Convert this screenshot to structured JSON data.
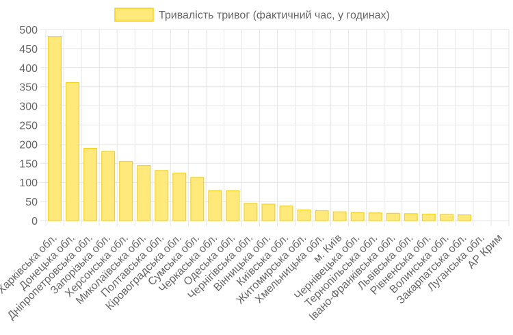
{
  "chart_data": {
    "type": "bar",
    "categories": [
      "Харківська обл.",
      "Донецька обл.",
      "Дніпропетровська обл.",
      "Запорізька обл.",
      "Херсонська обл.",
      "Миколаївська обл.",
      "Полтавська обл.",
      "Кіровоградська обл.",
      "Сумська обл.",
      "Черкаська обл.",
      "Одеська обл.",
      "Чернігівська обл.",
      "Вінницька обл.",
      "Київська обл.",
      "Житомирська обл.",
      "Хмельницька обл.",
      "м. Київ",
      "Чернівецька обл.",
      "Тернопільська обл.",
      "Івано-Франківська обл.",
      "Львівська обл.",
      "Рівненська обл.",
      "Волинська обл.",
      "Закарпатська обл.",
      "Луганська обл.",
      "АР Крим"
    ],
    "series": [
      {
        "name": "Тривалість тривог (фактичний час, у годинах)",
        "values": [
          481,
          361,
          189,
          181,
          155,
          144,
          131,
          124,
          113,
          78,
          78,
          45,
          43,
          38,
          28,
          26,
          23,
          21,
          20,
          19,
          18,
          17,
          16,
          15,
          0,
          0
        ]
      }
    ],
    "ylim": [
      0,
      500
    ],
    "yticks": [
      0,
      50,
      100,
      150,
      200,
      250,
      300,
      350,
      400,
      450,
      500
    ],
    "grid": true,
    "legend_position": "top",
    "colors": {
      "bar_fill": "#ffe97a",
      "bar_border": "#f2d321",
      "grid": "#e6e6e6",
      "text": "#666666"
    }
  }
}
